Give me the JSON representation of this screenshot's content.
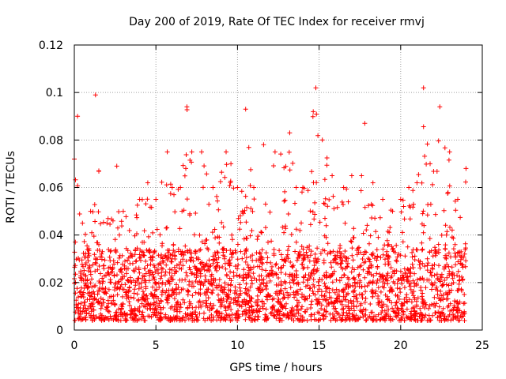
{
  "chart_data": {
    "type": "scatter",
    "title": "Day 200 of 2019, Rate Of TEC Index for receiver rmvj",
    "xlabel": "GPS time / hours",
    "ylabel": "ROTI / TECUs",
    "xlim": [
      0,
      25
    ],
    "ylim": [
      0,
      0.12
    ],
    "grid": true,
    "marker": "plus",
    "series_color": "#ff0000",
    "x_ticks": [
      "0",
      "5",
      "10",
      "15",
      "20",
      "25"
    ],
    "y_ticks": [
      "0",
      "0.02",
      "0.04",
      "0.06",
      "0.08",
      "0.1",
      "0.12"
    ],
    "x_tick_values": [
      0,
      5,
      10,
      15,
      20,
      25
    ],
    "y_tick_values": [
      0,
      0.02,
      0.04,
      0.06,
      0.08,
      0.1,
      0.12
    ],
    "data_range_hours": [
      0,
      24
    ],
    "baseline_roti": 0.015,
    "envelope": [
      [
        0.0,
        0.072
      ],
      [
        0.2,
        0.09
      ],
      [
        0.5,
        0.045
      ],
      [
        1.0,
        0.05
      ],
      [
        1.3,
        0.099
      ],
      [
        1.5,
        0.067
      ],
      [
        2.0,
        0.045
      ],
      [
        2.6,
        0.069
      ],
      [
        3.0,
        0.05
      ],
      [
        4.0,
        0.055
      ],
      [
        4.5,
        0.062
      ],
      [
        5.0,
        0.055
      ],
      [
        5.7,
        0.075
      ],
      [
        6.0,
        0.06
      ],
      [
        6.5,
        0.06
      ],
      [
        6.9,
        0.094
      ],
      [
        7.2,
        0.075
      ],
      [
        7.8,
        0.075
      ],
      [
        8.5,
        0.06
      ],
      [
        9.3,
        0.075
      ],
      [
        9.6,
        0.07
      ],
      [
        10.0,
        0.06
      ],
      [
        10.5,
        0.093
      ],
      [
        11.0,
        0.06
      ],
      [
        11.6,
        0.078
      ],
      [
        12.3,
        0.075
      ],
      [
        13.2,
        0.083
      ],
      [
        13.6,
        0.06
      ],
      [
        14.0,
        0.06
      ],
      [
        14.8,
        0.102
      ],
      [
        15.2,
        0.08
      ],
      [
        15.8,
        0.065
      ],
      [
        16.5,
        0.06
      ],
      [
        17.0,
        0.065
      ],
      [
        17.6,
        0.065
      ],
      [
        17.8,
        0.087
      ],
      [
        18.3,
        0.062
      ],
      [
        18.9,
        0.055
      ],
      [
        19.5,
        0.05
      ],
      [
        20.0,
        0.055
      ],
      [
        20.5,
        0.06
      ],
      [
        21.0,
        0.062
      ],
      [
        21.4,
        0.102
      ],
      [
        21.8,
        0.07
      ],
      [
        22.4,
        0.094
      ],
      [
        23.0,
        0.075
      ],
      [
        23.5,
        0.055
      ],
      [
        24.0,
        0.068
      ]
    ]
  }
}
